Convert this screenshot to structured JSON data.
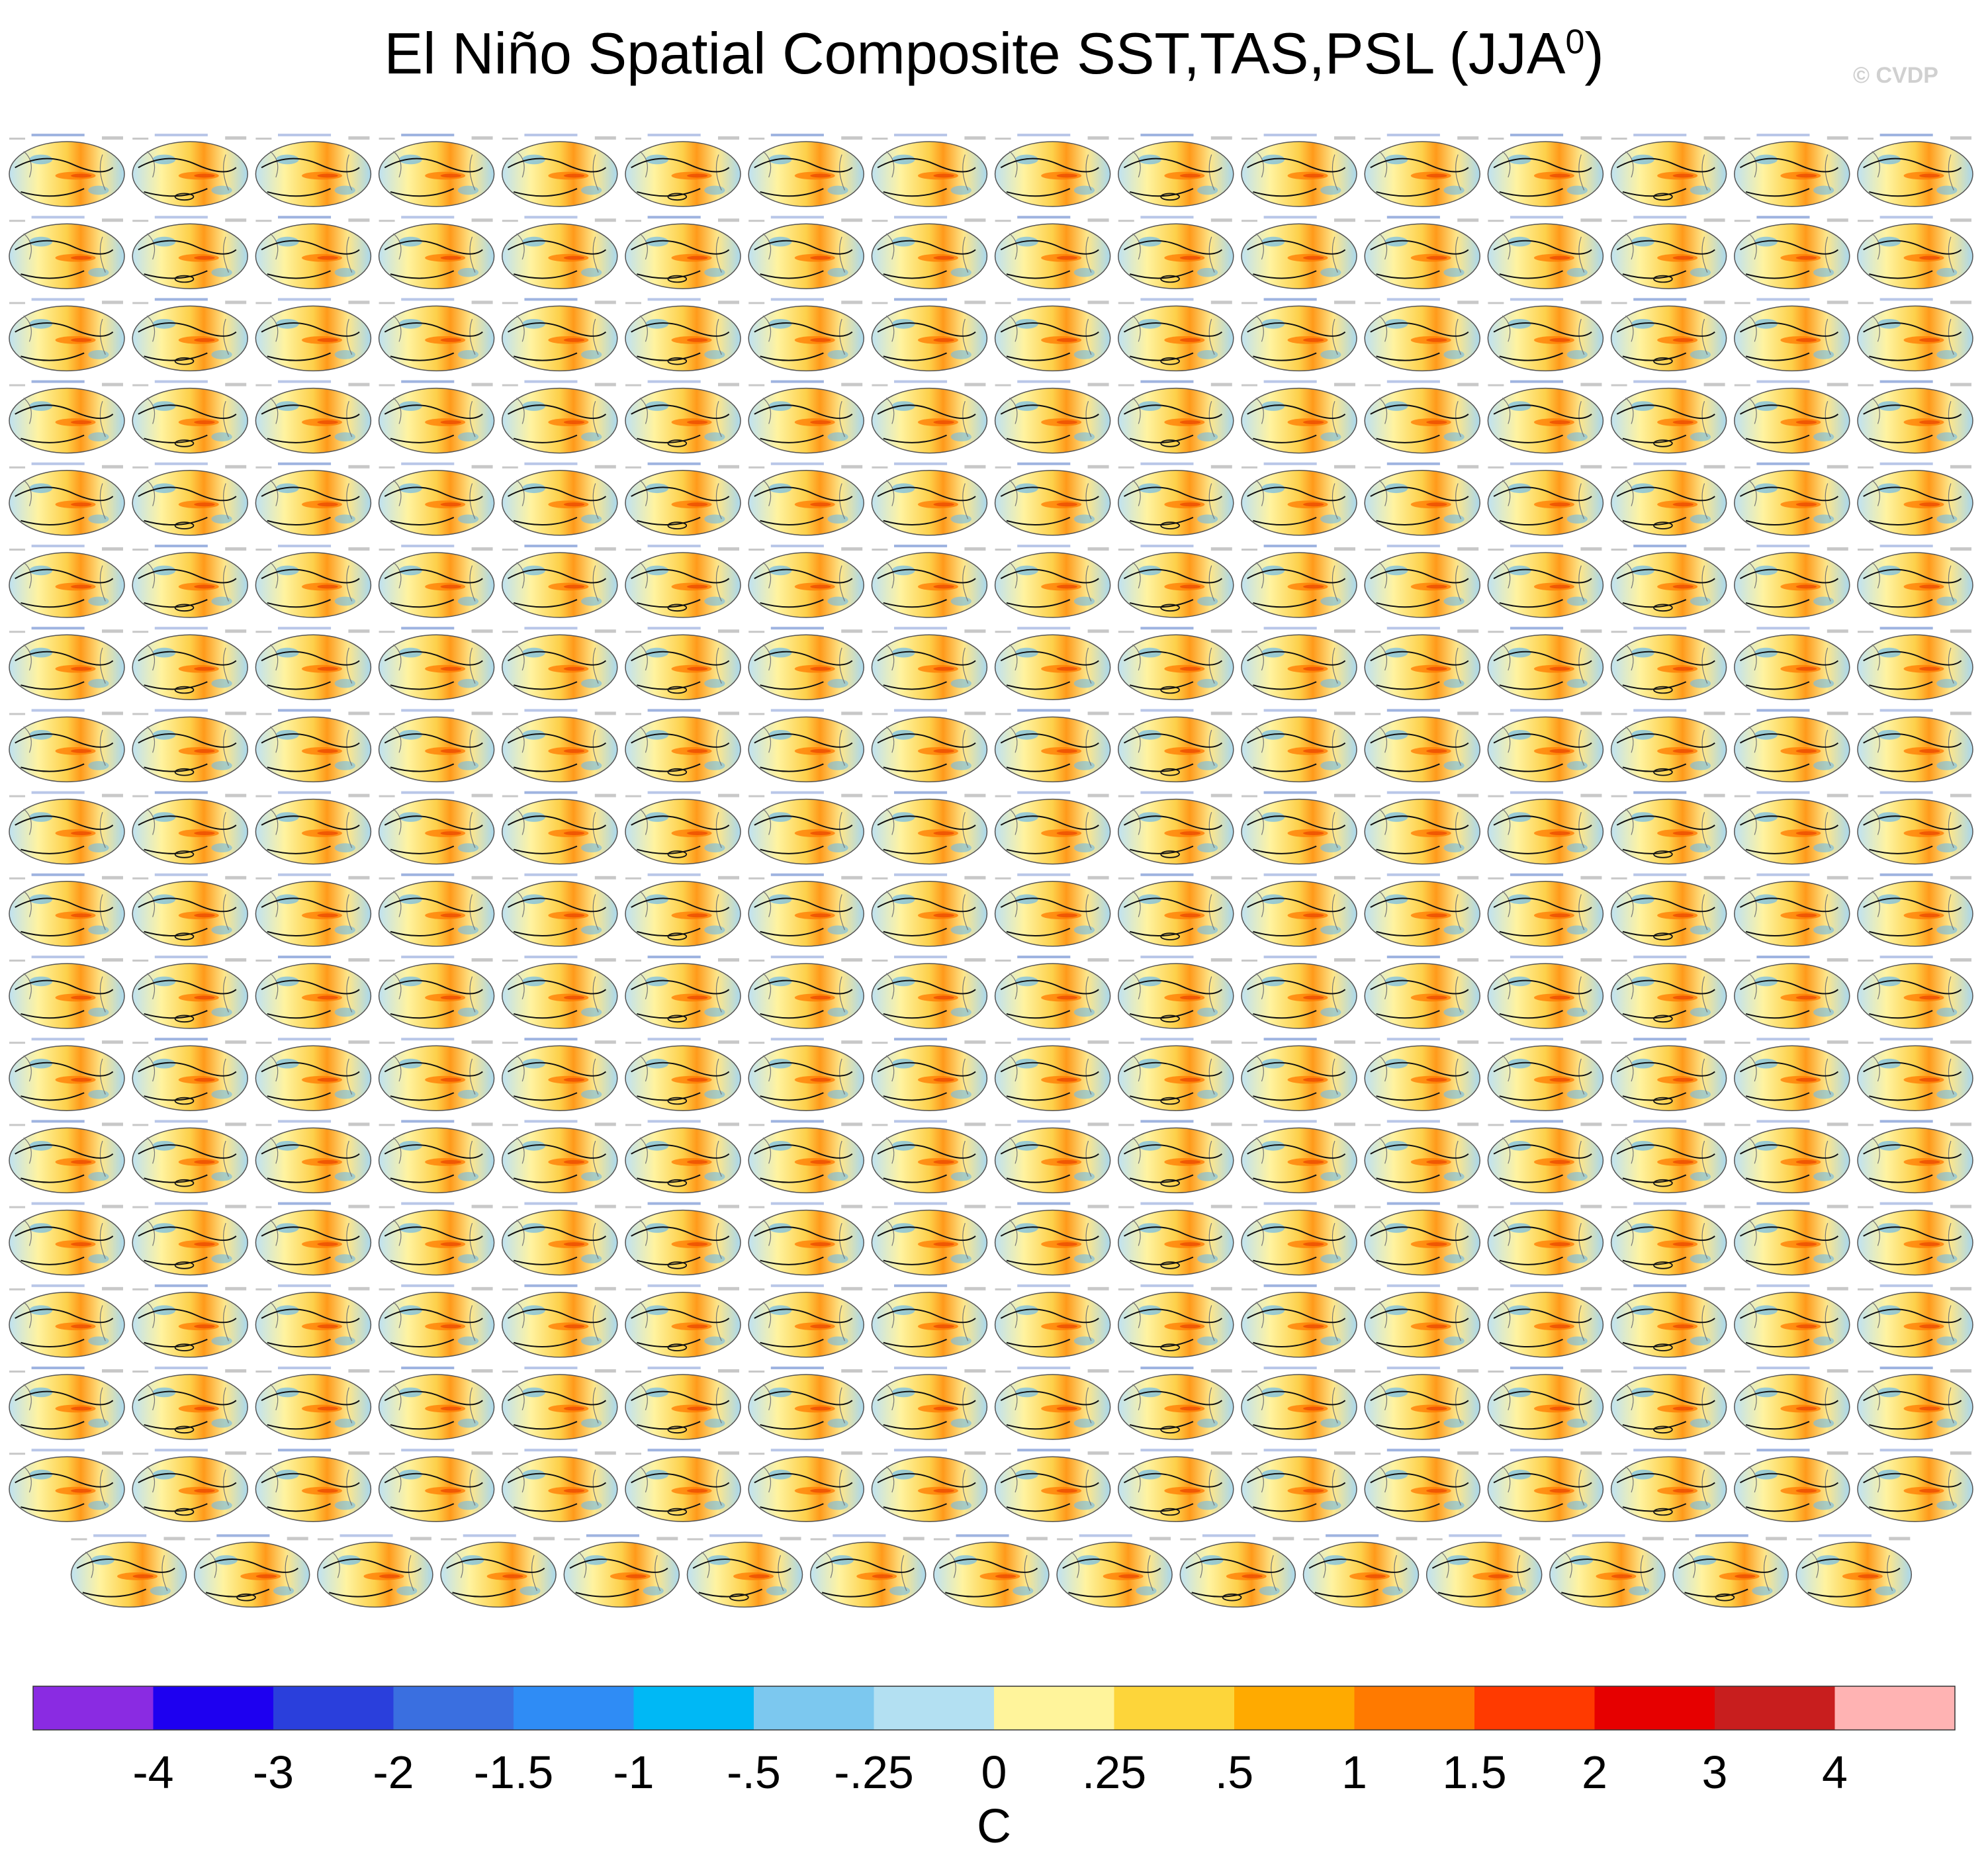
{
  "title": {
    "main": "El Niño Spatial Composite SST,TAS,PSL (JJA",
    "sup": "0",
    "close": ")"
  },
  "watermark": "© CVDP",
  "chart_data": {
    "type": "heatmap",
    "title": "El Niño Spatial Composite SST,TAS,PSL (JJA0)",
    "panel_layout": {
      "full_rows": 17,
      "columns": 16,
      "last_row_panels": 15,
      "total_panels": 287
    },
    "colorbar": {
      "unit": "C",
      "tick_labels": [
        "-4",
        "-3",
        "-2",
        "-1.5",
        "-1",
        "-.5",
        "-.25",
        "0",
        ".25",
        ".5",
        "1",
        "1.5",
        "2",
        "3",
        "4"
      ],
      "colors": [
        "#8a2be2",
        "#1e00f0",
        "#2a3fdc",
        "#3a6fe0",
        "#2f8cf5",
        "#00b8f5",
        "#7cc8ef",
        "#b3e0f2",
        "#fff49b",
        "#fdd53a",
        "#ffaa00",
        "#ff7a00",
        "#ff3a00",
        "#e60000",
        "#c81e1e",
        "#ffb3b3"
      ]
    }
  }
}
